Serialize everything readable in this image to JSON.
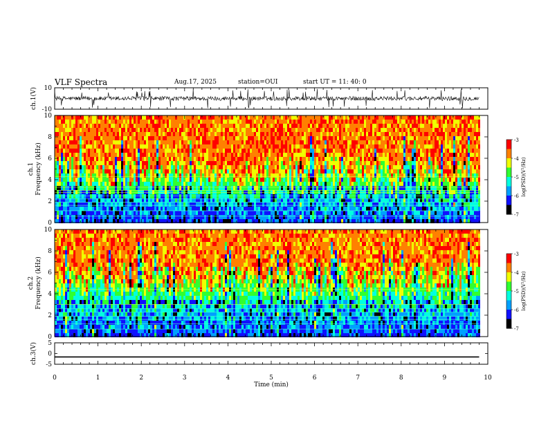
{
  "header": {
    "title": "VLF Spectra",
    "date": "Aug.17, 2025",
    "station": "station=OUI",
    "start": "start  UT =   11: 40: 0"
  },
  "chart_data": [
    {
      "id": "ch1-waveform",
      "type": "line",
      "title": "",
      "ylabel": "ch.1(V)",
      "ylim": [
        -10,
        10
      ],
      "yticks": [
        "10",
        "-10"
      ],
      "xlim": [
        0,
        10
      ],
      "description_values": {
        "baseline": 0,
        "typical_amplitude": 2,
        "spike_amplitude": 9,
        "data_end_min": 9.8
      }
    },
    {
      "id": "ch1-spectrogram",
      "type": "heatmap",
      "ylabel": "ch.1\nFrequency (kHz)",
      "ylim": [
        0,
        10
      ],
      "yticks": [
        "0",
        "2",
        "4",
        "6",
        "8",
        "10"
      ],
      "xlim": [
        0,
        10
      ],
      "data_end_min": 9.8,
      "colorbar": {
        "label": "log(PSD)(V²/Hz)",
        "range": [
          -7,
          -3
        ],
        "ticks": [
          "-3",
          "-4",
          "-5",
          "-6",
          "-7"
        ]
      }
    },
    {
      "id": "ch2-spectrogram",
      "type": "heatmap",
      "ylabel": "ch.2\nFrequency (kHz)",
      "ylim": [
        0,
        10
      ],
      "yticks": [
        "0",
        "2",
        "4",
        "6",
        "8",
        "10"
      ],
      "xlim": [
        0,
        10
      ],
      "data_end_min": 9.8,
      "colorbar": {
        "label": "log(PSD)(V²/Hz)",
        "range": [
          -7,
          -3
        ],
        "ticks": [
          "-3",
          "-4",
          "-5",
          "-6",
          "-7"
        ]
      }
    },
    {
      "id": "ch3-waveform",
      "type": "line",
      "ylabel": "ch.3(V)",
      "ylim": [
        -5,
        5
      ],
      "yticks": [
        "5",
        "0",
        "-5"
      ],
      "xlim": [
        0,
        10
      ],
      "values": {
        "constant": -1.6,
        "data_end_min": 9.8
      },
      "xlabel": "Time (min)",
      "xticks": [
        "0",
        "1",
        "2",
        "3",
        "4",
        "5",
        "6",
        "7",
        "8",
        "9",
        "10"
      ]
    }
  ],
  "colors": {
    "colormap": [
      "#000000",
      "#1010ff",
      "#00a0ff",
      "#00ffe0",
      "#30ff30",
      "#f0ff00",
      "#ff8000",
      "#ff0000",
      "#ffffff"
    ],
    "axis": "#000000"
  }
}
